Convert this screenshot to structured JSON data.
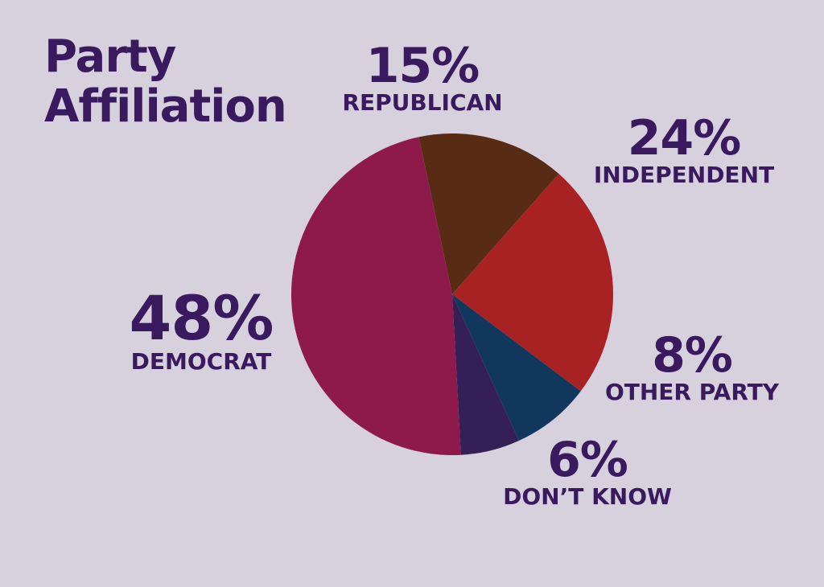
{
  "title_lines": [
    "Party",
    "Affiliation"
  ],
  "colors": {
    "background": "#d7d0dd",
    "text": "#3a1a5e"
  },
  "chart_data": {
    "type": "pie",
    "categories": [
      "REPUBLICAN",
      "INDEPENDENT",
      "OTHER PARTY",
      "DON’T KNOW",
      "DEMOCRAT"
    ],
    "values": [
      15,
      24,
      8,
      6,
      48
    ],
    "value_labels": [
      "15%",
      "24%",
      "8%",
      "6%",
      "48%"
    ],
    "colors": [
      "#582c14",
      "#a82224",
      "#12375c",
      "#341f56",
      "#8e1a4c"
    ],
    "legend": "none"
  }
}
